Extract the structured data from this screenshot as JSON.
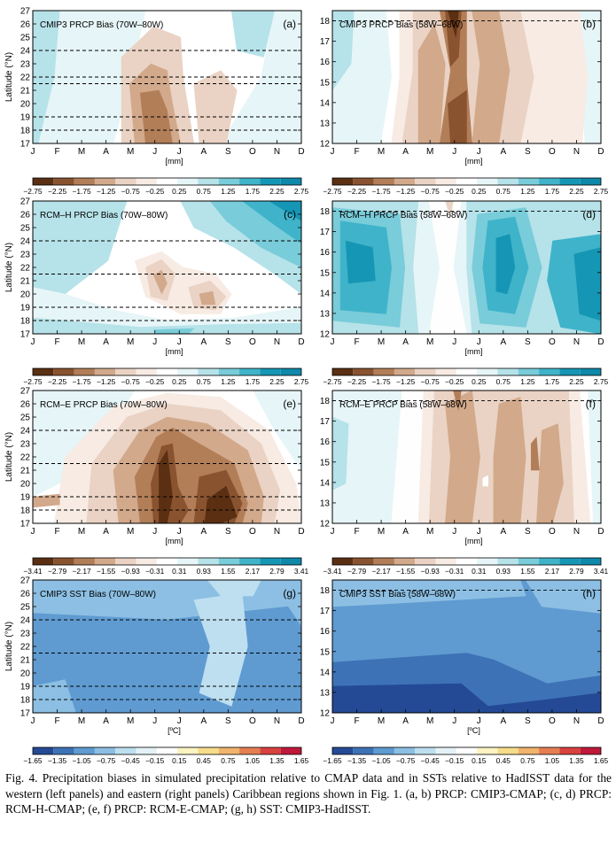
{
  "colors": {
    "brown": [
      "#5a2f12",
      "#8a5330",
      "#b27e58",
      "#d2a98b",
      "#ead3c4",
      "#f7ebe3"
    ],
    "blue_light": [
      "#e6f5f7",
      "#b6e2e9",
      "#79ccd9",
      "#3fb3c9",
      "#1696b5"
    ],
    "sst": [
      "#244a96",
      "#3e72b6",
      "#5f9bd1",
      "#8cbfe3",
      "#bddff0",
      "#e4f2f8",
      "#fefefe",
      "#fbf3c2",
      "#f7dc8a",
      "#f1b46c",
      "#e57f52",
      "#d7423f",
      "#c0183a"
    ]
  },
  "chart_data": [
    {
      "panel": "a",
      "type": "contour",
      "title": "CMIP3 PRCP Bias (70W–80W)",
      "panel_label": "(a)",
      "ylabel": "Latitude (°N)",
      "yticks": [
        "17",
        "18",
        "19",
        "20",
        "21",
        "22",
        "23",
        "24",
        "25",
        "26",
        "27"
      ],
      "ylim": [
        17,
        27
      ],
      "xticks": [
        "J",
        "F",
        "M",
        "A",
        "M",
        "J",
        "J",
        "A",
        "S",
        "O",
        "N",
        "D"
      ],
      "xlabel": "[mm]",
      "dashed_latitudes": [
        18,
        19,
        21.5,
        22,
        24
      ]
    },
    {
      "panel": "b",
      "type": "contour",
      "title": "CMIP3 PRCP Bias (58W–68W)",
      "panel_label": "(b)",
      "yticks": [
        "12",
        "13",
        "14",
        "15",
        "16",
        "17",
        "18"
      ],
      "ylim": [
        12,
        18.5
      ],
      "xticks": [
        "J",
        "F",
        "M",
        "A",
        "M",
        "J",
        "J",
        "A",
        "S",
        "O",
        "N",
        "D"
      ],
      "xlabel": "[mm]",
      "dashed_latitudes": [
        18
      ]
    },
    {
      "panel": "c",
      "type": "contour",
      "title": "RCM–H PRCP Bias (70W–80W)",
      "panel_label": "(c)",
      "ylabel": "Latitude (°N)",
      "yticks": [
        "17",
        "18",
        "19",
        "20",
        "21",
        "22",
        "23",
        "24",
        "25",
        "26",
        "27"
      ],
      "ylim": [
        17,
        27
      ],
      "xticks": [
        "J",
        "F",
        "M",
        "A",
        "M",
        "J",
        "J",
        "A",
        "S",
        "O",
        "N",
        "D"
      ],
      "xlabel": "[mm]",
      "dashed_latitudes": [
        18,
        19,
        21.5,
        24
      ]
    },
    {
      "panel": "d",
      "type": "contour",
      "title": "RCM–H PRCP Bias (58W–68W)",
      "panel_label": "(d)",
      "yticks": [
        "12",
        "13",
        "14",
        "15",
        "16",
        "17",
        "18"
      ],
      "ylim": [
        12,
        18.5
      ],
      "xticks": [
        "J",
        "F",
        "M",
        "A",
        "M",
        "J",
        "J",
        "A",
        "S",
        "O",
        "N",
        "D"
      ],
      "xlabel": "[mm]",
      "dashed_latitudes": [
        18
      ]
    },
    {
      "panel": "e",
      "type": "contour",
      "title": "RCM–E PRCP Bias (70W–80W)",
      "panel_label": "(e)",
      "ylabel": "Latitude (°N)",
      "yticks": [
        "17",
        "18",
        "19",
        "20",
        "21",
        "22",
        "23",
        "24",
        "25",
        "26",
        "27"
      ],
      "ylim": [
        17,
        27
      ],
      "xticks": [
        "J",
        "F",
        "M",
        "A",
        "M",
        "J",
        "J",
        "A",
        "S",
        "O",
        "N",
        "D"
      ],
      "xlabel": "[mm]",
      "dashed_latitudes": [
        18,
        19,
        21.5,
        24
      ]
    },
    {
      "panel": "f",
      "type": "contour",
      "title": "RCM–E PRCP Bias (58W–68W)",
      "panel_label": "(f)",
      "yticks": [
        "12",
        "13",
        "14",
        "15",
        "16",
        "17",
        "18"
      ],
      "ylim": [
        12,
        18.5
      ],
      "xticks": [
        "J",
        "F",
        "M",
        "A",
        "M",
        "J",
        "J",
        "A",
        "S",
        "O",
        "N",
        "D"
      ],
      "xlabel": "[mm]",
      "dashed_latitudes": [
        18
      ]
    },
    {
      "panel": "g",
      "type": "contour",
      "title": "CMIP3 SST Bias (70W–80W)",
      "panel_label": "(g)",
      "ylabel": "Latitude (°N)",
      "yticks": [
        "17",
        "18",
        "19",
        "20",
        "21",
        "22",
        "23",
        "24",
        "25",
        "26",
        "27"
      ],
      "ylim": [
        17,
        27
      ],
      "xticks": [
        "J",
        "F",
        "M",
        "A",
        "M",
        "J",
        "J",
        "A",
        "S",
        "O",
        "N",
        "D"
      ],
      "xlabel": "[ºC]",
      "dashed_latitudes": [
        18,
        19,
        21.5,
        24
      ]
    },
    {
      "panel": "h",
      "type": "contour",
      "title": "CMIP3 SST Bias (58W–68W)",
      "panel_label": "(h)",
      "yticks": [
        "12",
        "13",
        "14",
        "15",
        "16",
        "17",
        "18"
      ],
      "ylim": [
        12,
        18.5
      ],
      "xticks": [
        "J",
        "F",
        "M",
        "A",
        "M",
        "J",
        "J",
        "A",
        "S",
        "O",
        "N",
        "D"
      ],
      "xlabel": "[ºC]",
      "dashed_latitudes": [
        18
      ]
    }
  ],
  "colorbars": {
    "prcp1": [
      "−2.75",
      "−2.25",
      "−1.75",
      "−1.25",
      "−0.75",
      "−0.25",
      "0.25",
      "0.75",
      "1.25",
      "1.75",
      "2.25",
      "2.75"
    ],
    "prcp2": [
      "−3.41",
      "−2.79",
      "−2.17",
      "−1.55",
      "−0.93",
      "−0.31",
      "0.31",
      "0.93",
      "1.55",
      "2.17",
      "2.79",
      "3.41"
    ],
    "sst": [
      "−1.65",
      "−1.35",
      "−1.05",
      "−0.75",
      "−0.45",
      "−0.15",
      "0.15",
      "0.45",
      "0.75",
      "1.05",
      "1.35",
      "1.65"
    ]
  },
  "caption": "Fig. 4. Precipitation biases in simulated precipitation relative to CMAP data and in SSTs relative to HadISST data for the western (left panels) and eastern (right panels) Caribbean regions shown in Fig. 1. (a, b) PRCP: CMIP3-CMAP; (c, d) PRCP: RCM-H-CMAP; (e, f) PRCP: RCM-E-CMAP; (g, h) SST: CMIP3-HadISST."
}
